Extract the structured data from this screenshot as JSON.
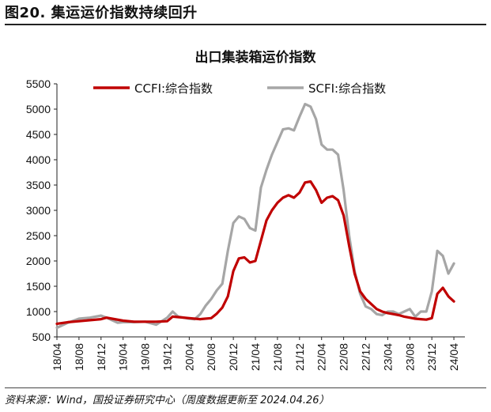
{
  "figure_title": "图20. 集运运价指数持续回升",
  "source": "资料来源：Wind，国投证券研究中心（周度数据更新至 2024.04.26）",
  "chart_data": {
    "type": "line",
    "title": "出口集装箱运价指数",
    "xlabel": "",
    "ylabel": "",
    "ylim": [
      500,
      5500
    ],
    "yticks": [
      500,
      1000,
      1500,
      2000,
      2500,
      3000,
      3500,
      4000,
      4500,
      5000,
      5500
    ],
    "xlim": [
      "2018-04",
      "2024-06"
    ],
    "xticks": [
      "18/04",
      "18/08",
      "18/12",
      "19/04",
      "19/08",
      "19/12",
      "20/04",
      "20/08",
      "20/12",
      "21/04",
      "21/08",
      "21/12",
      "22/04",
      "22/08",
      "22/12",
      "23/04",
      "23/08",
      "23/12",
      "24/04"
    ],
    "grid": false,
    "legend_position": "top",
    "series": [
      {
        "name": "CCFI:综合指数",
        "color": "#c00000",
        "points": [
          [
            "2018-04",
            760
          ],
          [
            "2018-06",
            790
          ],
          [
            "2018-08",
            810
          ],
          [
            "2018-10",
            830
          ],
          [
            "2018-12",
            850
          ],
          [
            "2019-01",
            880
          ],
          [
            "2019-02",
            860
          ],
          [
            "2019-04",
            820
          ],
          [
            "2019-06",
            800
          ],
          [
            "2019-08",
            800
          ],
          [
            "2019-10",
            800
          ],
          [
            "2019-12",
            810
          ],
          [
            "2020-01",
            900
          ],
          [
            "2020-02",
            890
          ],
          [
            "2020-04",
            870
          ],
          [
            "2020-06",
            850
          ],
          [
            "2020-08",
            870
          ],
          [
            "2020-09",
            960
          ],
          [
            "2020-10",
            1080
          ],
          [
            "2020-11",
            1300
          ],
          [
            "2020-12",
            1800
          ],
          [
            "2021-01",
            2050
          ],
          [
            "2021-02",
            2070
          ],
          [
            "2021-03",
            1970
          ],
          [
            "2021-04",
            2000
          ],
          [
            "2021-05",
            2400
          ],
          [
            "2021-06",
            2800
          ],
          [
            "2021-07",
            3000
          ],
          [
            "2021-08",
            3150
          ],
          [
            "2021-09",
            3250
          ],
          [
            "2021-10",
            3300
          ],
          [
            "2021-11",
            3250
          ],
          [
            "2021-12",
            3350
          ],
          [
            "2022-01",
            3550
          ],
          [
            "2022-02",
            3570
          ],
          [
            "2022-03",
            3400
          ],
          [
            "2022-04",
            3150
          ],
          [
            "2022-05",
            3250
          ],
          [
            "2022-06",
            3280
          ],
          [
            "2022-07",
            3200
          ],
          [
            "2022-08",
            2900
          ],
          [
            "2022-09",
            2300
          ],
          [
            "2022-10",
            1750
          ],
          [
            "2022-11",
            1400
          ],
          [
            "2022-12",
            1250
          ],
          [
            "2023-01",
            1150
          ],
          [
            "2023-02",
            1050
          ],
          [
            "2023-03",
            1000
          ],
          [
            "2023-04",
            970
          ],
          [
            "2023-05",
            950
          ],
          [
            "2023-06",
            930
          ],
          [
            "2023-07",
            900
          ],
          [
            "2023-08",
            880
          ],
          [
            "2023-09",
            860
          ],
          [
            "2023-10",
            850
          ],
          [
            "2023-11",
            840
          ],
          [
            "2023-12",
            870
          ],
          [
            "2024-01",
            1350
          ],
          [
            "2024-02",
            1470
          ],
          [
            "2024-03",
            1300
          ],
          [
            "2024-04",
            1200
          ]
        ]
      },
      {
        "name": "SCFI:综合指数",
        "color": "#a6a6a6",
        "points": [
          [
            "2018-04",
            680
          ],
          [
            "2018-06",
            780
          ],
          [
            "2018-08",
            860
          ],
          [
            "2018-10",
            880
          ],
          [
            "2018-12",
            920
          ],
          [
            "2019-01",
            880
          ],
          [
            "2019-02",
            830
          ],
          [
            "2019-03",
            780
          ],
          [
            "2019-04",
            790
          ],
          [
            "2019-06",
            790
          ],
          [
            "2019-08",
            800
          ],
          [
            "2019-10",
            740
          ],
          [
            "2019-12",
            880
          ],
          [
            "2020-01",
            1000
          ],
          [
            "2020-02",
            900
          ],
          [
            "2020-04",
            860
          ],
          [
            "2020-05",
            850
          ],
          [
            "2020-06",
            950
          ],
          [
            "2020-07",
            1120
          ],
          [
            "2020-08",
            1250
          ],
          [
            "2020-09",
            1420
          ],
          [
            "2020-10",
            1550
          ],
          [
            "2020-11",
            2200
          ],
          [
            "2020-12",
            2750
          ],
          [
            "2021-01",
            2880
          ],
          [
            "2021-02",
            2830
          ],
          [
            "2021-03",
            2650
          ],
          [
            "2021-04",
            2600
          ],
          [
            "2021-05",
            3450
          ],
          [
            "2021-06",
            3800
          ],
          [
            "2021-07",
            4100
          ],
          [
            "2021-08",
            4350
          ],
          [
            "2021-09",
            4600
          ],
          [
            "2021-10",
            4620
          ],
          [
            "2021-11",
            4580
          ],
          [
            "2021-12",
            4850
          ],
          [
            "2022-01",
            5100
          ],
          [
            "2022-02",
            5050
          ],
          [
            "2022-03",
            4800
          ],
          [
            "2022-04",
            4300
          ],
          [
            "2022-05",
            4200
          ],
          [
            "2022-06",
            4200
          ],
          [
            "2022-07",
            4100
          ],
          [
            "2022-08",
            3400
          ],
          [
            "2022-09",
            2500
          ],
          [
            "2022-10",
            1800
          ],
          [
            "2022-11",
            1350
          ],
          [
            "2022-12",
            1100
          ],
          [
            "2023-01",
            1050
          ],
          [
            "2023-02",
            950
          ],
          [
            "2023-03",
            930
          ],
          [
            "2023-04",
            1000
          ],
          [
            "2023-05",
            1000
          ],
          [
            "2023-06",
            950
          ],
          [
            "2023-07",
            1000
          ],
          [
            "2023-08",
            1050
          ],
          [
            "2023-09",
            900
          ],
          [
            "2023-10",
            1000
          ],
          [
            "2023-11",
            1000
          ],
          [
            "2023-12",
            1400
          ],
          [
            "2024-01",
            2200
          ],
          [
            "2024-02",
            2100
          ],
          [
            "2024-03",
            1750
          ],
          [
            "2024-04",
            1950
          ]
        ]
      }
    ]
  }
}
